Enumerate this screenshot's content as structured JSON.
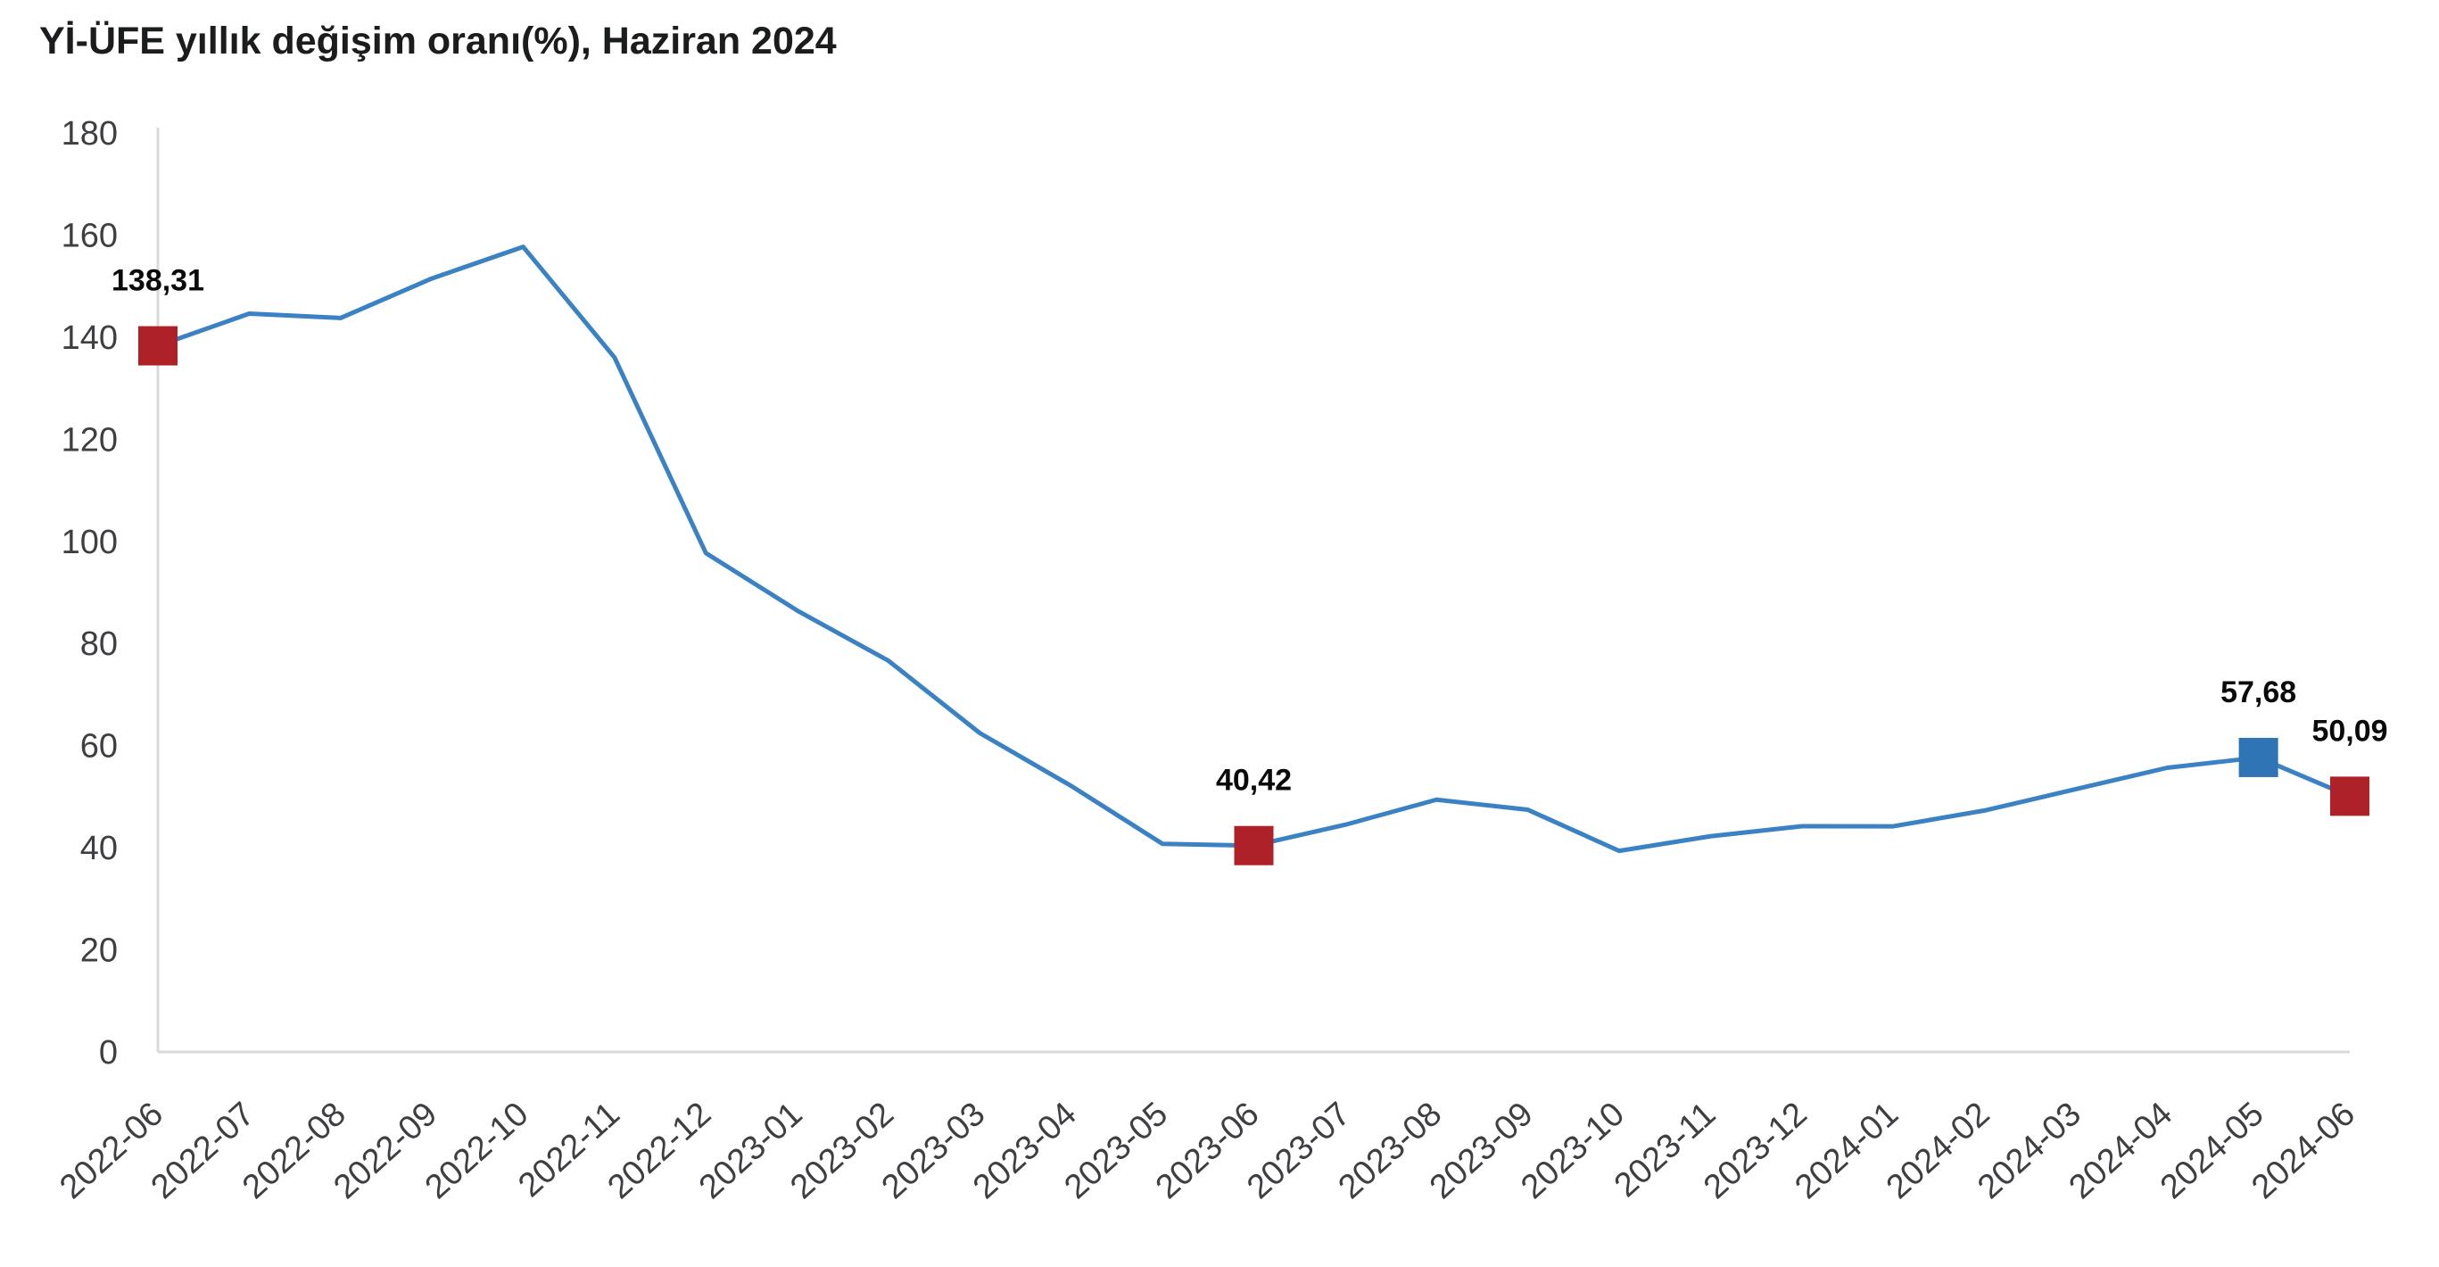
{
  "page": {
    "background": "#ffffff"
  },
  "header": {
    "title": "Yİ-ÜFE yıllık değişim oranı(%), Haziran 2024"
  },
  "chart_data": {
    "type": "line",
    "title": "Yİ-ÜFE yıllık değişim oranı(%), Haziran 2024",
    "xlabel": "",
    "ylabel": "",
    "ylim": [
      0,
      180
    ],
    "ytick_step": 20,
    "grid": false,
    "legend_position": "none",
    "x_label_rotation_deg": -42,
    "categories": [
      "2022-06",
      "2022-07",
      "2022-08",
      "2022-09",
      "2022-10",
      "2022-11",
      "2022-12",
      "2023-01",
      "2023-02",
      "2023-03",
      "2023-04",
      "2023-05",
      "2023-06",
      "2023-07",
      "2023-08",
      "2023-09",
      "2023-10",
      "2023-11",
      "2023-12",
      "2024-01",
      "2024-02",
      "2024-03",
      "2024-04",
      "2024-05",
      "2024-06"
    ],
    "series": [
      {
        "name": "Yİ-ÜFE yıllık değişim oranı (%)",
        "values": [
          138.31,
          144.61,
          143.75,
          151.5,
          157.69,
          136.02,
          97.72,
          86.46,
          76.61,
          62.45,
          52.11,
          40.76,
          40.42,
          44.5,
          49.41,
          47.44,
          39.39,
          42.25,
          44.22,
          44.2,
          47.29,
          51.47,
          55.66,
          57.68,
          50.09
        ]
      }
    ],
    "annotated_points": [
      {
        "category": "2022-06",
        "index": 0,
        "value": 138.31,
        "label": "138,31",
        "marker": "square",
        "marker_color": "#ae2128"
      },
      {
        "category": "2023-06",
        "index": 12,
        "value": 40.42,
        "label": "40,42",
        "marker": "square",
        "marker_color": "#ae2128"
      },
      {
        "category": "2024-05",
        "index": 23,
        "value": 57.68,
        "label": "57,68",
        "marker": "square",
        "marker_color": "#2f74b5"
      },
      {
        "category": "2024-06",
        "index": 24,
        "value": 50.09,
        "label": "50,09",
        "marker": "square",
        "marker_color": "#ae2128"
      }
    ],
    "colors": {
      "line": "#3b82c4",
      "axis_line": "#d9d9d9",
      "tick_label": "#3d3f42",
      "data_label": "#0a0a0a",
      "title": "#1b1c1e"
    }
  }
}
